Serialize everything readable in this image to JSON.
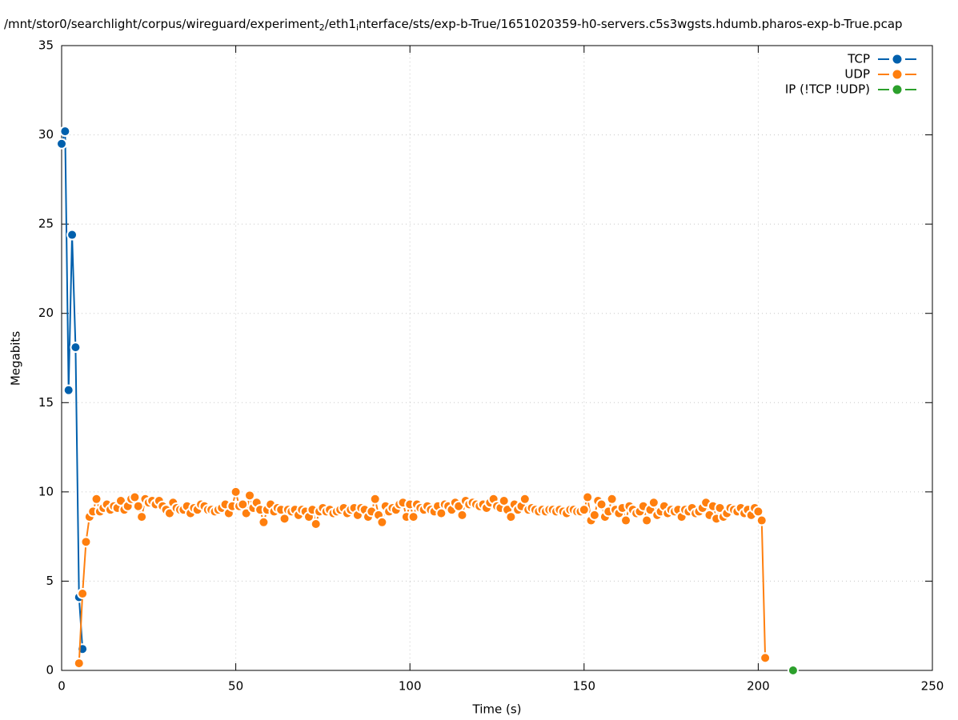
{
  "chart_data": {
    "type": "line",
    "title": [
      "/mnt/stor0/searchlight/corpus/wireguard/experiment",
      "2",
      "/eth1",
      "i",
      "nterface/sts/exp-b-True/1651020359-h0-servers.c5s3wgsts.hdumb.pharos-exp-b-True.pcap"
    ],
    "xlabel": "Time (s)",
    "ylabel": "Megabits",
    "xlim": [
      0,
      250
    ],
    "xticks": [
      0,
      50,
      100,
      150,
      200,
      250
    ],
    "ylim": [
      0,
      35
    ],
    "yticks": [
      0,
      5,
      10,
      15,
      20,
      25,
      30,
      35
    ],
    "grid": true,
    "legend": "top-right",
    "series": [
      {
        "name": "TCP",
        "color": "#0060ad",
        "x": [
          0,
          1,
          2,
          3,
          4,
          5,
          6
        ],
        "values": [
          29.5,
          30.2,
          15.7,
          24.4,
          18.1,
          4.1,
          1.2
        ]
      },
      {
        "name": "UDP",
        "color": "#ff7f0e",
        "x": [
          5,
          6,
          7,
          8,
          9,
          10,
          11,
          12,
          13,
          14,
          15,
          16,
          17,
          18,
          19,
          20,
          21,
          22,
          23,
          24,
          25,
          26,
          27,
          28,
          29,
          30,
          31,
          32,
          33,
          34,
          35,
          36,
          37,
          38,
          39,
          40,
          41,
          42,
          43,
          44,
          45,
          46,
          47,
          48,
          49,
          50,
          51,
          52,
          53,
          54,
          55,
          56,
          57,
          58,
          59,
          60,
          61,
          62,
          63,
          64,
          65,
          66,
          67,
          68,
          69,
          70,
          71,
          72,
          73,
          74,
          75,
          76,
          77,
          78,
          79,
          80,
          81,
          82,
          83,
          84,
          85,
          86,
          87,
          88,
          89,
          90,
          91,
          92,
          93,
          94,
          95,
          96,
          97,
          98,
          99,
          100,
          101,
          102,
          103,
          104,
          105,
          106,
          107,
          108,
          109,
          110,
          111,
          112,
          113,
          114,
          115,
          116,
          117,
          118,
          119,
          120,
          121,
          122,
          123,
          124,
          125,
          126,
          127,
          128,
          129,
          130,
          131,
          132,
          133,
          134,
          135,
          136,
          137,
          138,
          139,
          140,
          141,
          142,
          143,
          144,
          145,
          146,
          147,
          148,
          149,
          150,
          151,
          152,
          153,
          154,
          155,
          156,
          157,
          158,
          159,
          160,
          161,
          162,
          163,
          164,
          165,
          166,
          167,
          168,
          169,
          170,
          171,
          172,
          173,
          174,
          175,
          176,
          177,
          178,
          179,
          180,
          181,
          182,
          183,
          184,
          185,
          186,
          187,
          188,
          189,
          190,
          191,
          192,
          193,
          194,
          195,
          196,
          197,
          198,
          199,
          200,
          201,
          202
        ],
        "values": [
          0.4,
          4.3,
          7.2,
          8.6,
          8.9,
          9.6,
          8.9,
          9.1,
          9.3,
          9.0,
          9.2,
          9.1,
          9.5,
          9.0,
          9.2,
          9.6,
          9.7,
          9.2,
          8.6,
          9.6,
          9.4,
          9.5,
          9.3,
          9.5,
          9.2,
          9.0,
          8.8,
          9.4,
          9.1,
          9.0,
          9.0,
          9.2,
          8.8,
          9.1,
          9.0,
          9.3,
          9.2,
          9.0,
          9.0,
          8.9,
          9.0,
          9.1,
          9.3,
          8.8,
          9.2,
          10.0,
          9.2,
          9.3,
          8.8,
          9.8,
          9.1,
          9.4,
          9.0,
          8.3,
          9.0,
          9.3,
          8.9,
          9.1,
          9.0,
          8.5,
          9.0,
          8.9,
          9.0,
          8.7,
          9.0,
          8.9,
          8.6,
          9.0,
          8.2,
          8.9,
          9.1,
          8.9,
          9.0,
          8.8,
          8.9,
          9.0,
          9.1,
          8.8,
          9.0,
          9.1,
          8.7,
          9.1,
          9.0,
          8.6,
          8.9,
          9.6,
          8.7,
          8.3,
          9.2,
          8.9,
          9.1,
          9.0,
          9.3,
          9.4,
          8.6,
          9.3,
          8.6,
          9.3,
          9.1,
          9.0,
          9.2,
          9.0,
          8.9,
          9.2,
          8.8,
          9.3,
          9.2,
          9.0,
          9.4,
          9.2,
          8.7,
          9.5,
          9.3,
          9.4,
          9.3,
          9.2,
          9.3,
          9.1,
          9.4,
          9.6,
          9.2,
          9.1,
          9.5,
          9.0,
          8.6,
          9.3,
          9.0,
          9.2,
          9.6,
          9.0,
          9.1,
          9.0,
          8.9,
          9.0,
          8.9,
          9.0,
          9.0,
          8.9,
          9.0,
          8.9,
          8.8,
          9.0,
          9.0,
          8.9,
          8.9,
          9.0,
          9.7,
          8.4,
          8.7,
          9.5,
          9.3,
          8.6,
          8.9,
          9.6,
          9.0,
          8.8,
          9.1,
          8.4,
          9.2,
          9.0,
          8.8,
          8.9,
          9.2,
          8.4,
          9.0,
          9.4,
          8.7,
          8.9,
          9.2,
          8.8,
          9.0,
          8.9,
          9.0,
          8.6,
          9.0,
          8.9,
          9.1,
          8.8,
          8.9,
          9.1,
          9.4,
          8.7,
          9.2,
          8.5,
          9.1,
          8.6,
          8.8,
          9.1,
          9.0,
          8.9,
          9.1,
          8.8,
          9.0,
          8.7,
          9.1,
          8.9,
          8.4,
          0.7
        ]
      },
      {
        "name": "IP (!TCP  !UDP)",
        "color": "#2ca02c",
        "x": [
          210
        ],
        "values": [
          0
        ]
      }
    ]
  }
}
